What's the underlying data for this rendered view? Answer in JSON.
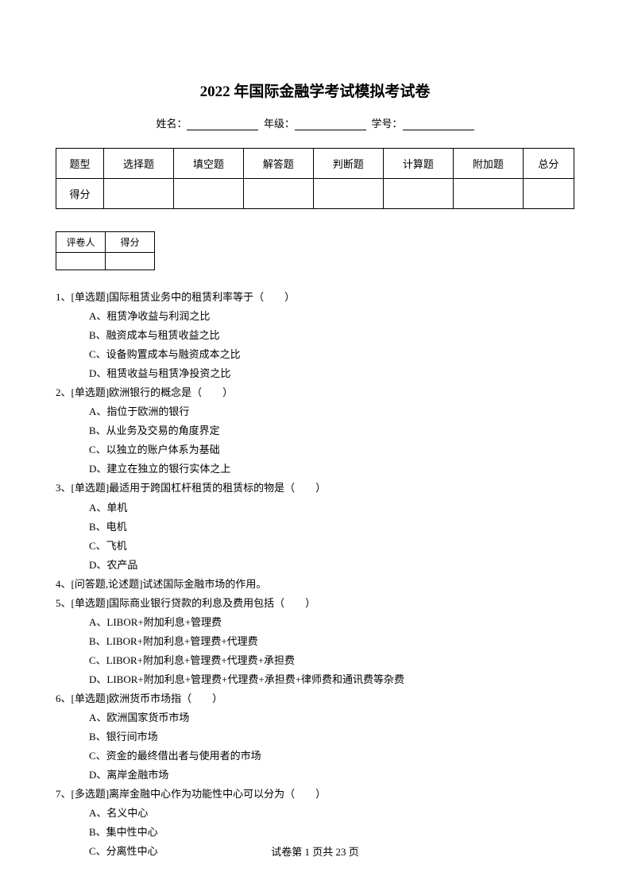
{
  "title": "2022 年国际金融学考试模拟考试卷",
  "info": {
    "name_label": "姓名：",
    "grade_label": "年级：",
    "id_label": "学号："
  },
  "main_table": {
    "headers": [
      "题型",
      "选择题",
      "填空题",
      "解答题",
      "判断题",
      "计算题",
      "附加题",
      "总分"
    ],
    "row_label": "得分"
  },
  "small_table": {
    "c1": "评卷人",
    "c2": "得分"
  },
  "questions": [
    {
      "text": "1、[单选题]国际租赁业务中的租赁利率等于（　　）",
      "options": [
        "A、租赁净收益与利润之比",
        "B、融资成本与租赁收益之比",
        "C、设备购置成本与融资成本之比",
        "D、租赁收益与租赁净投资之比"
      ]
    },
    {
      "text": "2、[单选题]欧洲银行的概念是（　　）",
      "options": [
        "A、指位于欧洲的银行",
        "B、从业务及交易的角度界定",
        "C、以独立的账户体系为基础",
        "D、建立在独立的银行实体之上"
      ]
    },
    {
      "text": "3、[单选题]最适用于跨国杠杆租赁的租赁标的物是（　　）",
      "options": [
        "A、单机",
        "B、电机",
        "C、飞机",
        "D、农产品"
      ]
    },
    {
      "text": "4、[问答题,论述题]试述国际金融市场的作用。",
      "options": []
    },
    {
      "text": "5、[单选题]国际商业银行贷款的利息及费用包括（　　）",
      "options": [
        "A、LIBOR+附加利息+管理费",
        "B、LIBOR+附加利息+管理费+代理费",
        "C、LIBOR+附加利息+管理费+代理费+承担费",
        "D、LIBOR+附加利息+管理费+代理费+承担费+律师费和通讯费等杂费"
      ]
    },
    {
      "text": "6、[单选题]欧洲货币市场指（　　）",
      "options": [
        "A、欧洲国家货币市场",
        "B、银行间市场",
        "C、资金的最终借出者与使用者的市场",
        "D、离岸金融市场"
      ]
    },
    {
      "text": "7、[多选题]离岸金融中心作为功能性中心可以分为（　　）",
      "options": [
        "A、名义中心",
        "B、集中性中心",
        "C、分离性中心"
      ]
    }
  ],
  "footer": "试卷第 1 页共 23 页"
}
